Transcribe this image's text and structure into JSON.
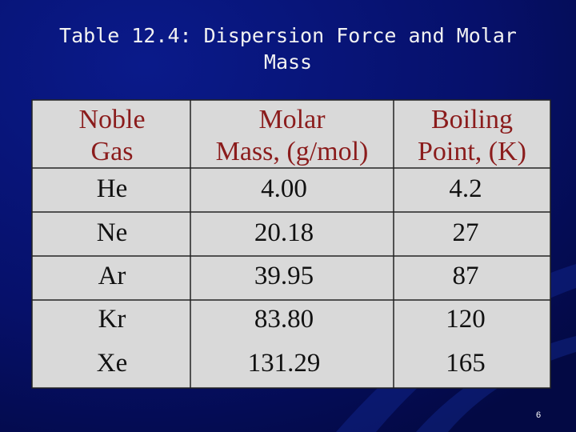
{
  "slide": {
    "title": [
      "Table 12.4: Dispersion Force and Molar",
      "Mass"
    ],
    "table": {
      "header": [
        [
          "Noble",
          "Gas"
        ],
        [
          "Molar",
          "Mass, (g/mol)"
        ],
        [
          "Boiling",
          "Point, (K)"
        ]
      ],
      "rows": [
        [
          "He",
          "4.00",
          "4.2"
        ],
        [
          "Ne",
          "20.18",
          "27"
        ],
        [
          "Ar",
          "39.95",
          "87"
        ],
        [
          "Kr",
          "83.80",
          "120"
        ],
        [
          "Xe",
          "131.29",
          "165"
        ]
      ]
    },
    "page_number": "6"
  }
}
